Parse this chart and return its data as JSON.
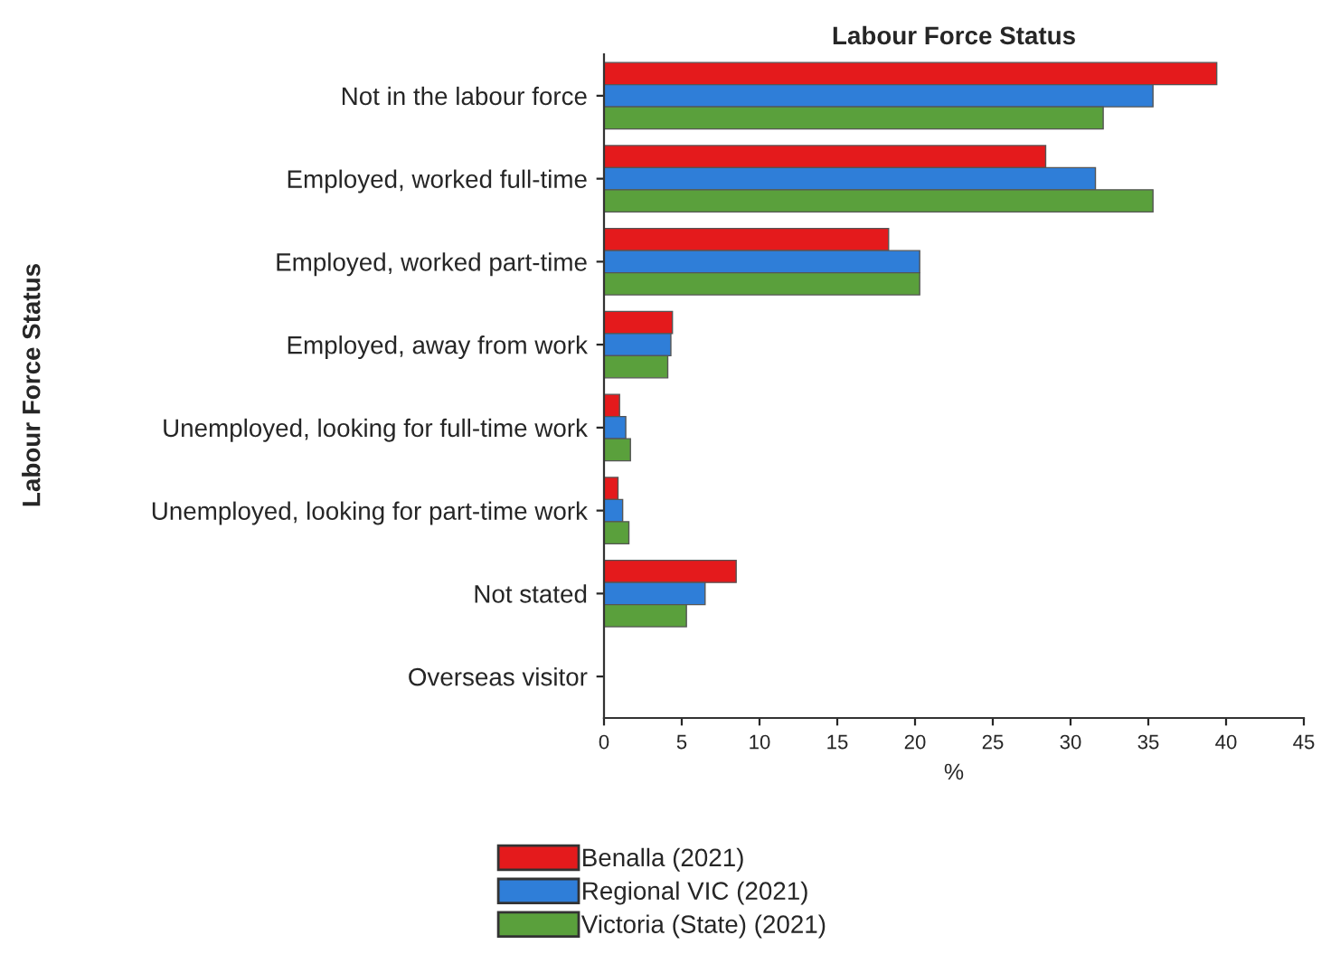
{
  "chart_data": {
    "type": "bar",
    "orientation": "horizontal",
    "title": "Labour Force Status",
    "xlabel": "%",
    "ylabel": "Labour Force Status",
    "categories": [
      "Not in the labour force",
      "Employed, worked full-time",
      "Employed, worked part-time",
      "Employed, away from work",
      "Unemployed, looking for full-time work",
      "Unemployed, looking for part-time work",
      "Not stated",
      "Overseas visitor"
    ],
    "series": [
      {
        "name": "Benalla (2021)",
        "color": "#e41a1c",
        "values": [
          39.4,
          28.4,
          18.3,
          4.4,
          1.0,
          0.9,
          8.5,
          0
        ]
      },
      {
        "name": "Regional VIC (2021)",
        "color": "#2f7ed8",
        "values": [
          35.3,
          31.6,
          20.3,
          4.3,
          1.4,
          1.2,
          6.5,
          0
        ]
      },
      {
        "name": "Victoria (State) (2021)",
        "color": "#5aa03c",
        "values": [
          32.1,
          35.3,
          20.3,
          4.1,
          1.7,
          1.6,
          5.3,
          0
        ]
      }
    ],
    "xlim": [
      0,
      45
    ],
    "xticks": [
      0,
      5,
      10,
      15,
      20,
      25,
      30,
      35,
      40,
      45
    ],
    "grid": false,
    "legend": "bottom"
  }
}
